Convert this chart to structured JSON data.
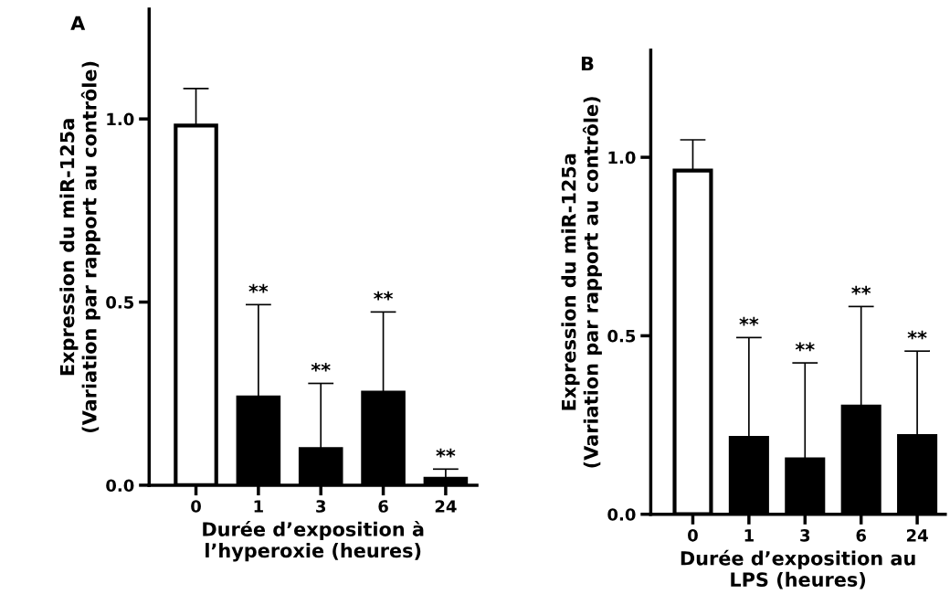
{
  "chart_data": [
    {
      "type": "bar",
      "title": "A",
      "categories": [
        "0",
        "1",
        "3",
        "6",
        "24"
      ],
      "values": [
        0.982,
        0.24,
        0.099,
        0.253,
        0.018
      ],
      "errors": [
        [
          0.982,
          1.083
        ],
        [
          0.24,
          0.493
        ],
        [
          0.099,
          0.278
        ],
        [
          0.253,
          0.473
        ],
        [
          0.018,
          0.044
        ]
      ],
      "colors": [
        "#ffffff",
        "#000000",
        "#000000",
        "#000000",
        "#000000"
      ],
      "xlabel": "Durée d’exposition à\nl’hyperoxie (heures)",
      "ylabel": "Expression du miR-125a\n(Variation par rapport au contrôle)",
      "ylim": [
        0,
        1.3
      ],
      "yticks": [
        {
          "value": 0,
          "label": "0.0"
        },
        {
          "value": 0.5,
          "label": "0.5"
        },
        {
          "value": 1,
          "label": "1.0"
        }
      ],
      "annotations": [
        {
          "text": "**",
          "x": "1",
          "y": 0.493
        },
        {
          "text": "**",
          "x": "3",
          "y": 0.278
        },
        {
          "text": "**",
          "x": "6",
          "y": 0.473
        },
        {
          "text": "**",
          "x": "24",
          "y": 0.044
        }
      ],
      "grid": false,
      "legend": false
    },
    {
      "type": "bar",
      "title": "B",
      "categories": [
        "0",
        "1",
        "3",
        "6",
        "24"
      ],
      "values": [
        0.963,
        0.214,
        0.154,
        0.302,
        0.219
      ],
      "errors": [
        [
          0.963,
          1.049
        ],
        [
          0.214,
          0.495
        ],
        [
          0.154,
          0.424
        ],
        [
          0.302,
          0.582
        ],
        [
          0.219,
          0.457
        ]
      ],
      "colors": [
        "#ffffff",
        "#000000",
        "#000000",
        "#000000",
        "#000000"
      ],
      "xlabel": "Durée d’exposition au\nLPS (heures)",
      "ylabel": "Expression du miR-125a\n(Variation par rapport au contrôle)",
      "ylim": [
        0,
        1.3
      ],
      "yticks": [
        {
          "value": 0,
          "label": "0.0"
        },
        {
          "value": 0.5,
          "label": "0.5"
        },
        {
          "value": 1,
          "label": "1.0"
        }
      ],
      "annotations": [
        {
          "text": "**",
          "x": "1",
          "y": 0.495
        },
        {
          "text": "**",
          "x": "3",
          "y": 0.424
        },
        {
          "text": "**",
          "x": "6",
          "y": 0.582
        },
        {
          "text": "**",
          "x": "24",
          "y": 0.457
        }
      ],
      "grid": false,
      "legend": false
    }
  ]
}
